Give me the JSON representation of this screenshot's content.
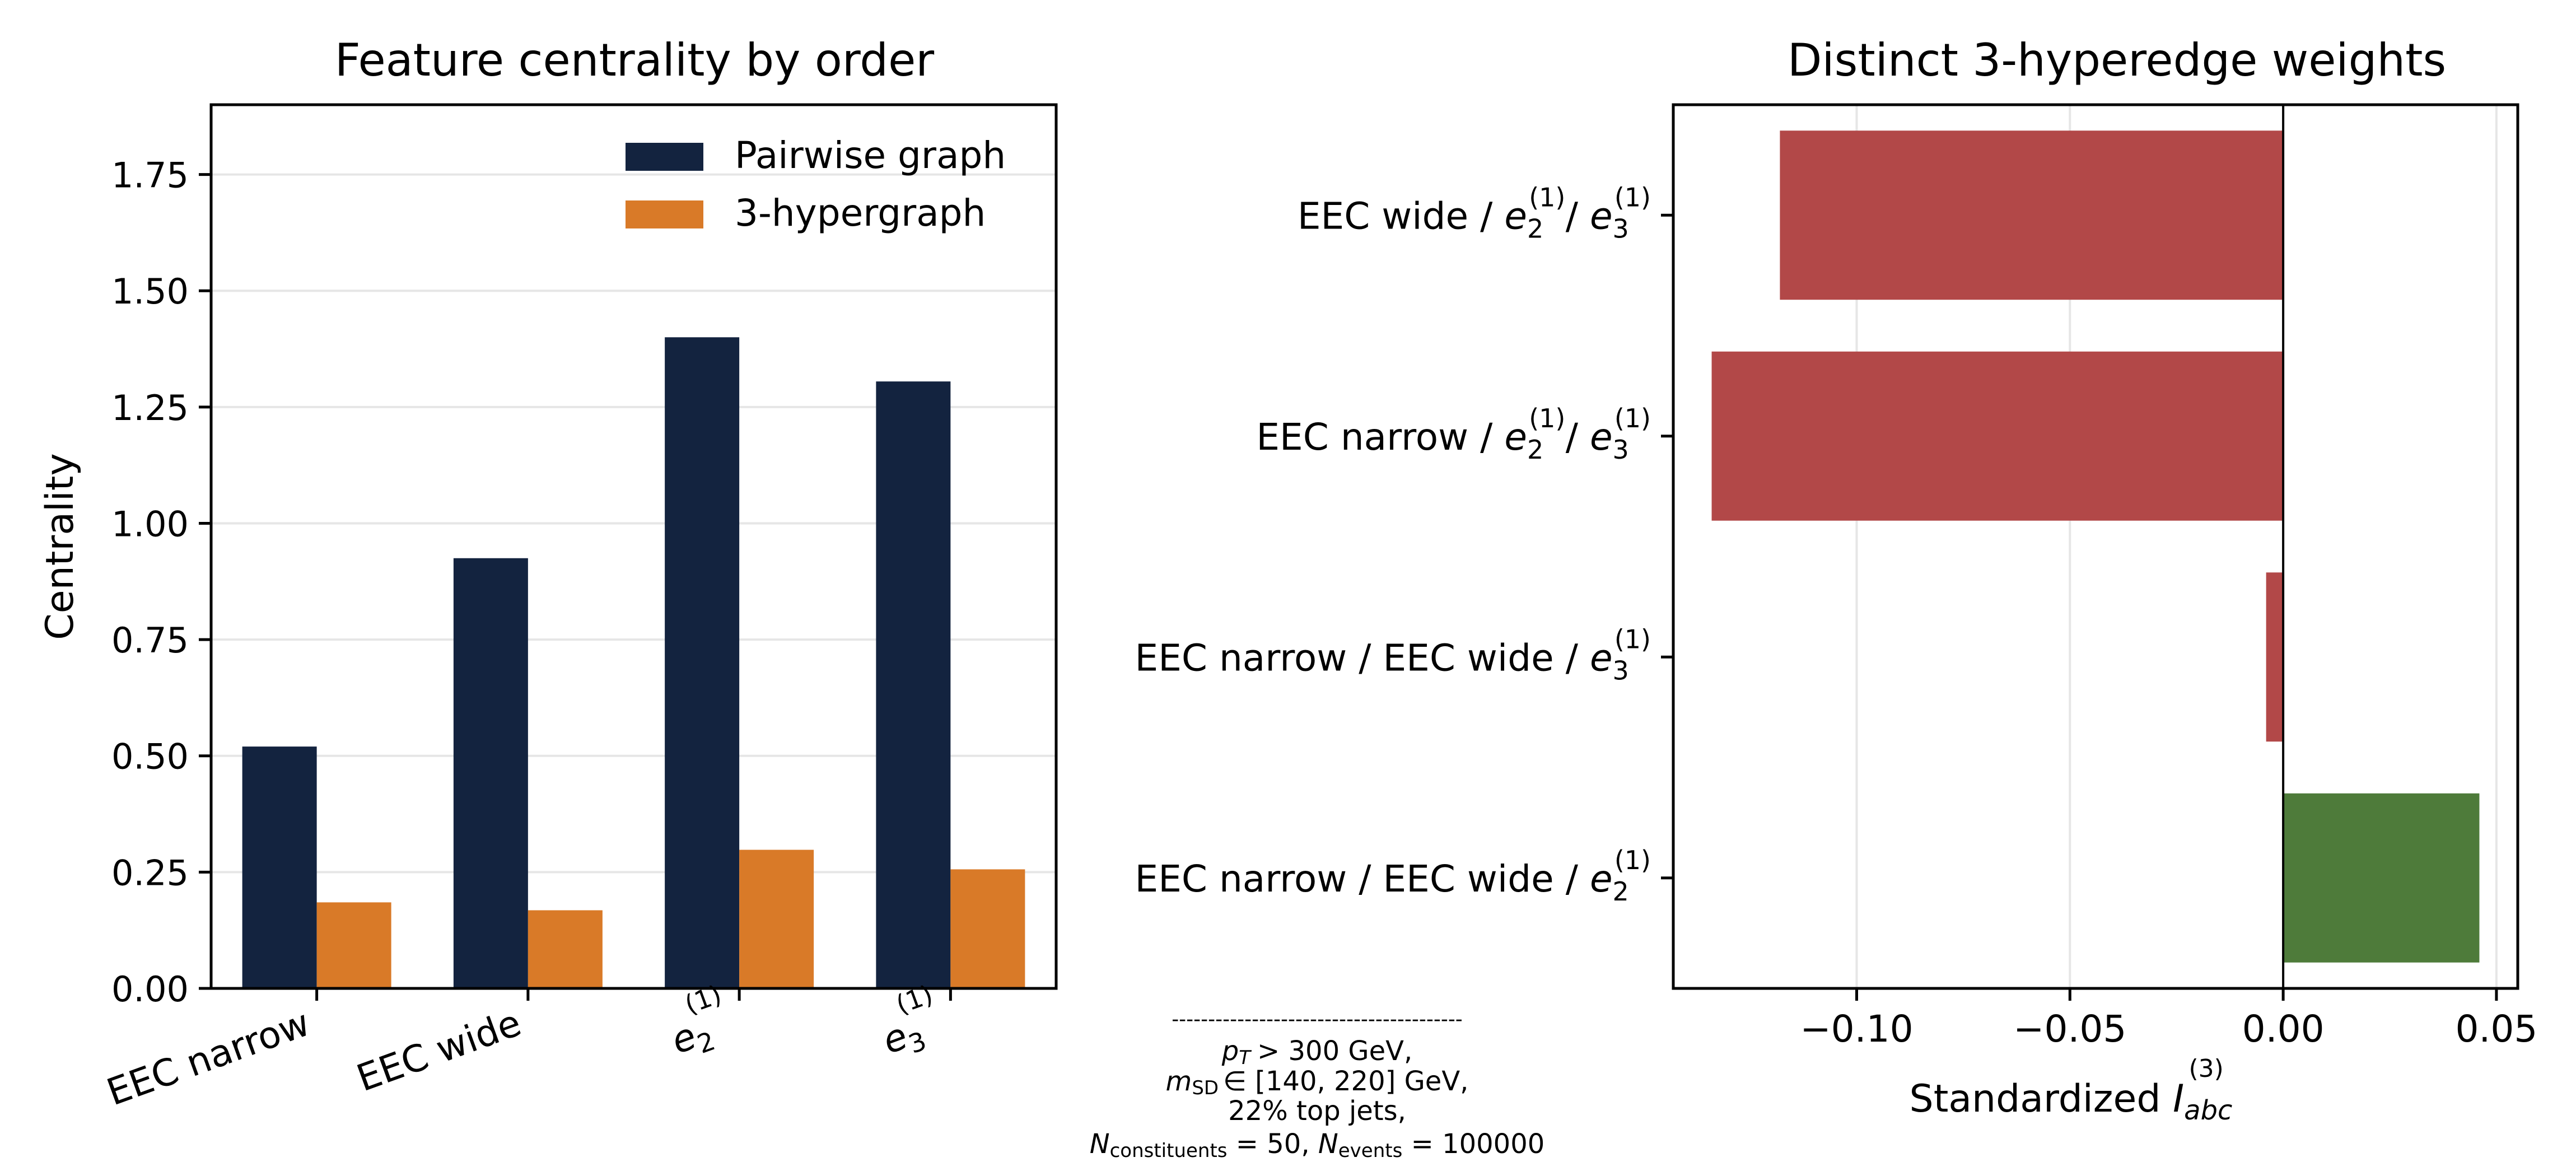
{
  "chart_data": [
    {
      "type": "bar",
      "title": "Feature centrality by order",
      "ylabel": "Centrality",
      "xlabel": "",
      "categories": [
        {
          "base": "EEC narrow",
          "sub": "",
          "sup": ""
        },
        {
          "base": "EEC wide",
          "sub": "",
          "sup": ""
        },
        {
          "base": "e",
          "sub": "2",
          "sup": "(1)"
        },
        {
          "base": "e",
          "sub": "3",
          "sup": "(1)"
        }
      ],
      "series": [
        {
          "name": "Pairwise graph",
          "color": "#13233f",
          "values": [
            0.52,
            0.925,
            1.4,
            1.305
          ]
        },
        {
          "name": "3-hypergraph",
          "color": "#d97a28",
          "values": [
            0.185,
            0.168,
            0.298,
            0.256
          ]
        }
      ],
      "ylim": [
        0,
        1.9
      ],
      "yticks": [
        "0.00",
        "0.25",
        "0.50",
        "0.75",
        "1.00",
        "1.25",
        "1.50",
        "1.75"
      ],
      "grid": "y",
      "legend": "top-right"
    },
    {
      "type": "bar",
      "orientation": "horizontal",
      "title": "Distinct 3-hyperedge weights",
      "xlabel": {
        "text": "Standardized ",
        "base": "I",
        "sub": "abc",
        "sup": "(3)"
      },
      "categories": [
        {
          "text": "EEC wide / ",
          "terms": [
            {
              "base": "e",
              "sub": "2",
              "sup": "(1)"
            },
            {
              "base": "e",
              "sub": "3",
              "sup": "(1)"
            }
          ]
        },
        {
          "text": "EEC narrow / ",
          "terms": [
            {
              "base": "e",
              "sub": "2",
              "sup": "(1)"
            },
            {
              "base": "e",
              "sub": "3",
              "sup": "(1)"
            }
          ]
        },
        {
          "text": "EEC narrow / EEC wide / ",
          "terms": [
            {
              "base": "e",
              "sub": "3",
              "sup": "(1)"
            }
          ]
        },
        {
          "text": "EEC narrow / EEC wide / ",
          "terms": [
            {
              "base": "e",
              "sub": "2",
              "sup": "(1)"
            }
          ]
        }
      ],
      "values": [
        -0.118,
        -0.134,
        -0.004,
        0.046
      ],
      "colors": {
        "negative": "#b24848",
        "positive": "#4e7b3a"
      },
      "xlim": [
        -0.143,
        0.055
      ],
      "xticks": [
        "−0.10",
        "−0.05",
        "0.00",
        "0.05"
      ],
      "xtick_values": [
        -0.1,
        -0.05,
        0.0,
        0.05
      ],
      "grid": "x"
    }
  ],
  "annotation": {
    "separator": "----------------------------------------",
    "line1": "> 300 GeV,",
    "line1_symbol": "p",
    "line1_sub": "T",
    "line2_symbol": "m",
    "line2_sub": "SD",
    "line2": "∈ [140, 220] GeV,",
    "line3": "22% top jets,",
    "line4_a_symbol": "N",
    "line4_a_sub": "constituents",
    "line4_a_value": " = 50, ",
    "line4_b_symbol": "N",
    "line4_b_sub": "events",
    "line4_b_value": " = 100000"
  }
}
